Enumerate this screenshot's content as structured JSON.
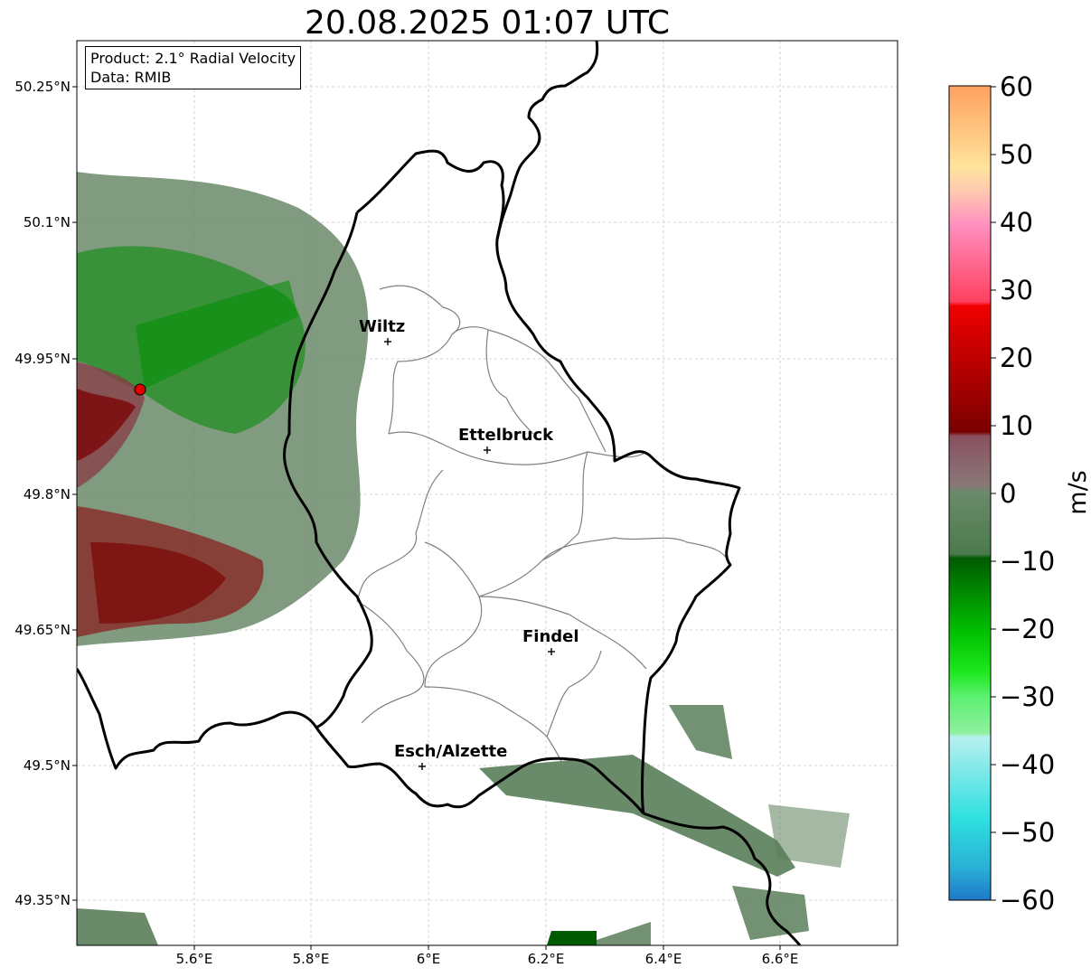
{
  "title": "20.08.2025 01:07 UTC",
  "info": {
    "product": "Product: 2.1° Radial Velocity",
    "data": "Data: RMIB"
  },
  "axes": {
    "lat_ticks": [
      "50.25°N",
      "50.1°N",
      "49.95°N",
      "49.8°N",
      "49.65°N",
      "49.5°N",
      "49.35°N"
    ],
    "lon_ticks": [
      "5.6°E",
      "5.8°E",
      "6°E",
      "6.2°E",
      "6.4°E",
      "6.6°E"
    ]
  },
  "cities": [
    {
      "name": "Wiltz"
    },
    {
      "name": "Ettelbruck"
    },
    {
      "name": "Findel"
    },
    {
      "name": "Esch/Alzette"
    }
  ],
  "colorbar": {
    "label": "m/s",
    "ticks": [
      "60",
      "50",
      "40",
      "30",
      "20",
      "10",
      "0",
      "−10",
      "−20",
      "−30",
      "−40",
      "−50",
      "−60"
    ],
    "range": [
      -60,
      60
    ],
    "colors": [
      "#1f78c8",
      "#2ab0d6",
      "#2ee0e0",
      "#5fe6e6",
      "#8eeaea",
      "#b8f0f0",
      "#8ff0a0",
      "#5cf070",
      "#1ee81e",
      "#00c800",
      "#00a000",
      "#007a00",
      "#005a00",
      "#4c7a4c",
      "#6a8a6a",
      "#8a7878",
      "#8a5a64",
      "#7a3a3a",
      "#7a0000",
      "#a00000",
      "#c80000",
      "#f00000",
      "#ff5070",
      "#ff80a8",
      "#ffa0c0",
      "#ffc8a8",
      "#ffe49c",
      "#ffc080",
      "#ffa060"
    ],
    "radar": "red-dot-marker"
  }
}
